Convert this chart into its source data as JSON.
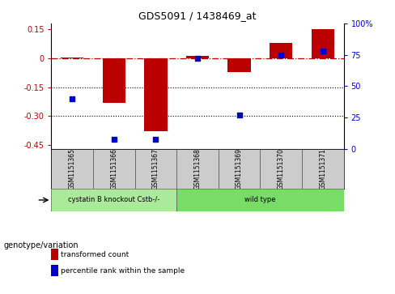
{
  "title": "GDS5091 / 1438469_at",
  "samples": [
    "GSM1151365",
    "GSM1151366",
    "GSM1151367",
    "GSM1151368",
    "GSM1151369",
    "GSM1151370",
    "GSM1151371"
  ],
  "bar_values": [
    0.002,
    -0.23,
    -0.38,
    0.012,
    -0.07,
    0.08,
    0.15
  ],
  "percentile_values": [
    40,
    8,
    8,
    72,
    27,
    75,
    78
  ],
  "bar_color": "#bb0000",
  "dot_color": "#0000cc",
  "ylim_left": [
    -0.47,
    0.18
  ],
  "ylim_right": [
    0,
    100
  ],
  "yticks_left": [
    0.15,
    0.0,
    -0.15,
    -0.3,
    -0.45
  ],
  "yticks_right": [
    100,
    75,
    50,
    25,
    0
  ],
  "groups": [
    {
      "label": "cystatin B knockout Cstb-/-",
      "indices": [
        0,
        1,
        2
      ],
      "color": "#aaea9a"
    },
    {
      "label": "wild type",
      "indices": [
        3,
        4,
        5,
        6
      ],
      "color": "#77dd66"
    }
  ],
  "group_row_label": "genotype/variation",
  "legend_bar_label": "transformed count",
  "legend_dot_label": "percentile rank within the sample",
  "hline_y": 0.0,
  "dotted_lines": [
    -0.15,
    -0.3
  ],
  "bar_width": 0.55,
  "background_color": "#ffffff"
}
